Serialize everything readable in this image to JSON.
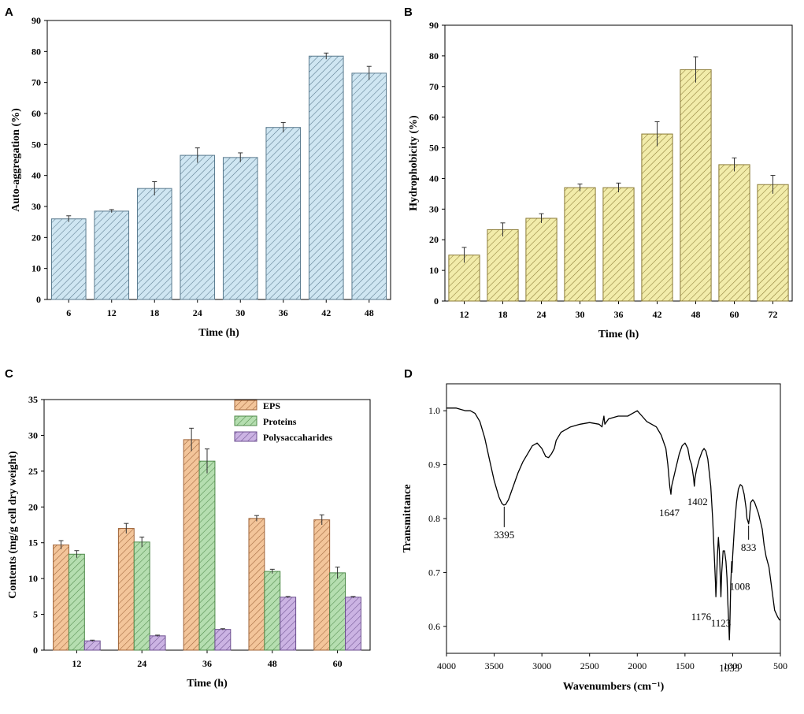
{
  "panels": [
    {
      "letter": "A",
      "chart_data": {
        "type": "bar",
        "categories": [
          "6",
          "12",
          "18",
          "24",
          "30",
          "36",
          "42",
          "48"
        ],
        "values": [
          26,
          28.5,
          35.8,
          46.5,
          45.8,
          55.5,
          78.5,
          73
        ],
        "errors": [
          1,
          0.5,
          2.2,
          2.4,
          1.5,
          1.6,
          1,
          2.2
        ],
        "xlabel": "Time (h)",
        "ylabel": "Auto-aggregation (%)",
        "ylim": [
          0,
          90
        ],
        "yticks": [
          0,
          10,
          20,
          30,
          40,
          50,
          60,
          70,
          80,
          90
        ],
        "color": "#cfe6f2",
        "stroke": "#5a7a8e"
      }
    },
    {
      "letter": "B",
      "chart_data": {
        "type": "bar",
        "categories": [
          "12",
          "18",
          "24",
          "30",
          "36",
          "42",
          "48",
          "60",
          "72"
        ],
        "values": [
          15,
          23.3,
          27,
          37,
          37,
          54.5,
          75.5,
          44.5,
          38
        ],
        "errors": [
          2.5,
          2.2,
          1.5,
          1.2,
          1.5,
          4,
          4.2,
          2.2,
          3
        ],
        "xlabel": "Time (h)",
        "ylabel": "Hydrophobicity (%)",
        "ylim": [
          0,
          90
        ],
        "yticks": [
          0,
          10,
          20,
          30,
          40,
          50,
          60,
          70,
          80,
          90
        ],
        "color": "#f2ecaa",
        "stroke": "#8a7a35"
      }
    },
    {
      "letter": "C",
      "chart_data": {
        "type": "bar",
        "categories": [
          "12",
          "24",
          "36",
          "48",
          "60"
        ],
        "series": [
          {
            "name": "EPS",
            "values": [
              14.7,
              17,
              29.4,
              18.4,
              18.2
            ],
            "errors": [
              0.6,
              0.7,
              1.6,
              0.4,
              0.7
            ],
            "color": "#f3c59a",
            "stroke": "#a0653a"
          },
          {
            "name": "Proteins",
            "values": [
              13.4,
              15.1,
              26.4,
              11,
              10.8
            ],
            "errors": [
              0.5,
              0.7,
              1.7,
              0.3,
              0.8
            ],
            "color": "#b5deb0",
            "stroke": "#4f8a4a"
          },
          {
            "name": "Polysaccaharides",
            "values": [
              1.3,
              2,
              2.9,
              7.4,
              7.4
            ],
            "errors": [
              0.1,
              0.1,
              0.1,
              0.1,
              0.1
            ],
            "color": "#cbb3e3",
            "stroke": "#6c4f8f"
          }
        ],
        "xlabel": "Time (h)",
        "ylabel": "Contents (mg/g cell dry weight)",
        "ylim": [
          0,
          35
        ],
        "yticks": [
          0,
          5,
          10,
          15,
          20,
          25,
          30,
          35
        ]
      }
    },
    {
      "letter": "D",
      "chart_data": {
        "type": "line",
        "xlabel": "Wavenumbers (cm⁻¹)",
        "ylabel": "Transmittance",
        "xlim": [
          4000,
          500
        ],
        "ylim": [
          0.55,
          1.05
        ],
        "xticks": [
          4000,
          3500,
          3000,
          2500,
          2000,
          1500,
          1000,
          500
        ],
        "yticks": [
          0.6,
          0.7,
          0.8,
          0.9,
          1.0
        ],
        "ytick_labels": [
          "0.6",
          "0.7",
          "0.8",
          "0.9",
          "1.0"
        ],
        "x": [
          4000,
          3900,
          3800,
          3750,
          3700,
          3650,
          3600,
          3550,
          3500,
          3450,
          3420,
          3400,
          3380,
          3350,
          3300,
          3250,
          3200,
          3150,
          3100,
          3050,
          3000,
          2960,
          2930,
          2900,
          2870,
          2850,
          2800,
          2700,
          2600,
          2500,
          2400,
          2370,
          2350,
          2340,
          2300,
          2200,
          2100,
          2050,
          2000,
          1950,
          1900,
          1850,
          1800,
          1750,
          1700,
          1680,
          1660,
          1647,
          1640,
          1600,
          1560,
          1530,
          1500,
          1470,
          1450,
          1430,
          1410,
          1402,
          1395,
          1380,
          1350,
          1320,
          1300,
          1280,
          1260,
          1230,
          1210,
          1190,
          1180,
          1176,
          1170,
          1160,
          1150,
          1140,
          1130,
          1123,
          1115,
          1100,
          1085,
          1070,
          1060,
          1050,
          1040,
          1035,
          1030,
          1020,
          1010,
          1008,
          1000,
          980,
          960,
          940,
          920,
          900,
          880,
          860,
          850,
          840,
          833,
          825,
          810,
          790,
          770,
          750,
          730,
          710,
          690,
          670,
          650,
          620,
          590,
          560,
          530,
          510,
          500
        ],
        "y": [
          1.005,
          1.005,
          1.0,
          1.0,
          0.995,
          0.98,
          0.95,
          0.91,
          0.87,
          0.84,
          0.828,
          0.825,
          0.826,
          0.835,
          0.86,
          0.885,
          0.905,
          0.92,
          0.935,
          0.94,
          0.93,
          0.915,
          0.913,
          0.92,
          0.93,
          0.945,
          0.96,
          0.97,
          0.975,
          0.978,
          0.975,
          0.97,
          0.99,
          0.975,
          0.985,
          0.99,
          0.99,
          0.995,
          1.0,
          0.99,
          0.98,
          0.975,
          0.97,
          0.955,
          0.93,
          0.9,
          0.86,
          0.845,
          0.86,
          0.89,
          0.92,
          0.935,
          0.94,
          0.93,
          0.91,
          0.9,
          0.875,
          0.86,
          0.875,
          0.89,
          0.91,
          0.925,
          0.93,
          0.925,
          0.91,
          0.86,
          0.8,
          0.72,
          0.68,
          0.655,
          0.68,
          0.73,
          0.765,
          0.74,
          0.69,
          0.655,
          0.7,
          0.74,
          0.74,
          0.72,
          0.69,
          0.64,
          0.6,
          0.575,
          0.6,
          0.68,
          0.72,
          0.7,
          0.73,
          0.79,
          0.83,
          0.855,
          0.863,
          0.86,
          0.845,
          0.82,
          0.8,
          0.795,
          0.79,
          0.8,
          0.83,
          0.835,
          0.83,
          0.82,
          0.81,
          0.795,
          0.78,
          0.75,
          0.73,
          0.71,
          0.67,
          0.63,
          0.618,
          0.612,
          0.612
        ],
        "annotations": [
          {
            "label": "3395",
            "x": 3395,
            "y": 0.825
          },
          {
            "label": "1647",
            "x": 1647,
            "y": 0.845
          },
          {
            "label": "1402",
            "x": 1402,
            "y": 0.86
          },
          {
            "label": "833",
            "x": 833,
            "y": 0.79
          },
          {
            "label": "1176",
            "x": 1176,
            "y": 0.655
          },
          {
            "label": "1123",
            "x": 1123,
            "y": 0.655
          },
          {
            "label": "1008",
            "x": 1008,
            "y": 0.72
          },
          {
            "label": "1035",
            "x": 1035,
            "y": 0.575
          }
        ]
      }
    }
  ]
}
